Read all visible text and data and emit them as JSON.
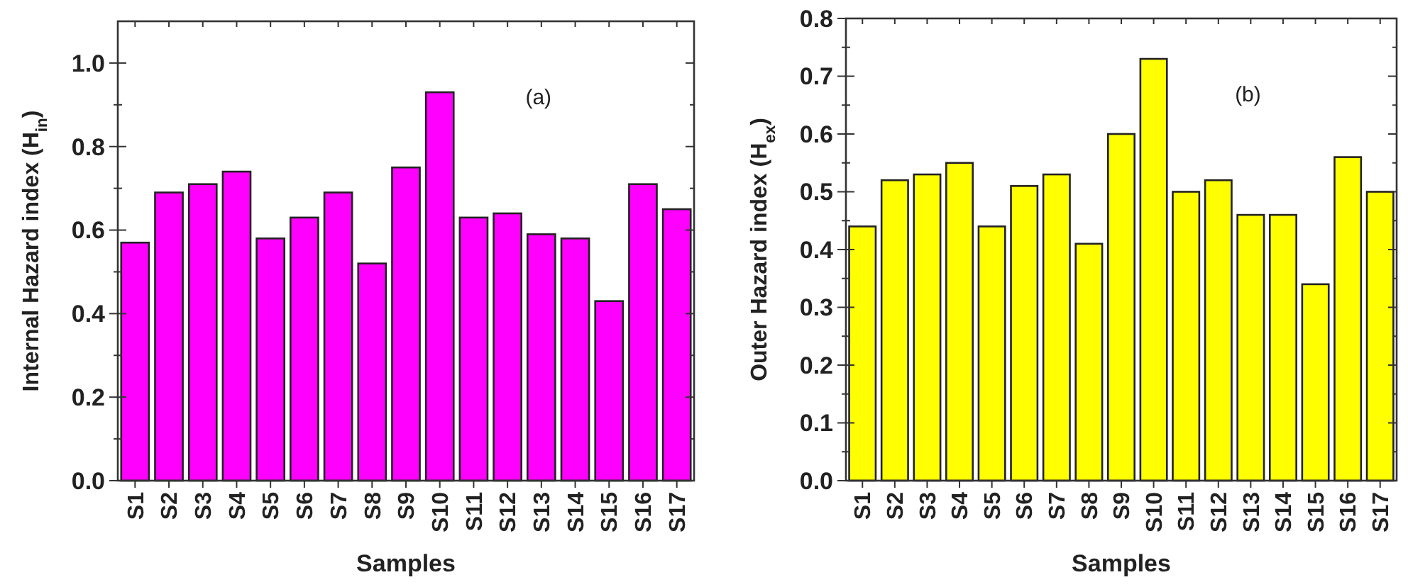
{
  "chart_data": [
    {
      "type": "bar",
      "ylabel": "Internal Hazard index  (H$_{in}$)",
      "xlabel": "Samples",
      "annotations": [
        "(a)"
      ],
      "categories": [
        "S1",
        "S2",
        "S3",
        "S4",
        "S5",
        "S6",
        "S7",
        "S8",
        "S9",
        "S10",
        "S11",
        "S12",
        "S13",
        "S14",
        "S15",
        "S16",
        "S17"
      ],
      "values": [
        0.57,
        0.69,
        0.71,
        0.74,
        0.58,
        0.63,
        0.69,
        0.52,
        0.75,
        0.93,
        0.63,
        0.64,
        0.59,
        0.58,
        0.43,
        0.71,
        0.65
      ],
      "color": "#ff00ff",
      "ylim": [
        0,
        1.1
      ],
      "yticks": [
        {
          "value": 0,
          "label": "0.0"
        },
        {
          "value": 0.1,
          "label": null
        },
        {
          "value": 0.2,
          "label": "0.2"
        },
        {
          "value": 0.3,
          "label": null
        },
        {
          "value": 0.4,
          "label": "0.4"
        },
        {
          "value": 0.5,
          "label": null
        },
        {
          "value": 0.6,
          "label": "0.6"
        },
        {
          "value": 0.7,
          "label": null
        },
        {
          "value": 0.8,
          "label": "0.8"
        },
        {
          "value": 0.9,
          "label": null
        },
        {
          "value": 1,
          "label": "1.0"
        }
      ],
      "grid": false
    },
    {
      "type": "bar",
      "ylabel": "Outer Hazard index   (H$_{ex}$)",
      "xlabel": "Samples",
      "annotations": [
        "(b)"
      ],
      "categories": [
        "S1",
        "S2",
        "S3",
        "S4",
        "S5",
        "S6",
        "S7",
        "S8",
        "S9",
        "S10",
        "S11",
        "S12",
        "S13",
        "S14",
        "S15",
        "S16",
        "S17"
      ],
      "values": [
        0.44,
        0.52,
        0.53,
        0.55,
        0.44,
        0.51,
        0.53,
        0.41,
        0.6,
        0.73,
        0.5,
        0.52,
        0.46,
        0.46,
        0.34,
        0.56,
        0.5
      ],
      "color": "#ffff00",
      "ylim": [
        0,
        0.8
      ],
      "yticks": [
        {
          "value": 0,
          "label": "0.0"
        },
        {
          "value": 0.05,
          "label": null
        },
        {
          "value": 0.1,
          "label": "0.1"
        },
        {
          "value": 0.15,
          "label": null
        },
        {
          "value": 0.2,
          "label": "0.2"
        },
        {
          "value": 0.25,
          "label": null
        },
        {
          "value": 0.3,
          "label": "0.3"
        },
        {
          "value": 0.35,
          "label": null
        },
        {
          "value": 0.4,
          "label": "0.4"
        },
        {
          "value": 0.45,
          "label": null
        },
        {
          "value": 0.5,
          "label": "0.5"
        },
        {
          "value": 0.55,
          "label": null
        },
        {
          "value": 0.6,
          "label": "0.6"
        },
        {
          "value": 0.65,
          "label": null
        },
        {
          "value": 0.7,
          "label": "0.7"
        },
        {
          "value": 0.75,
          "label": null
        },
        {
          "value": 0.8,
          "label": "0.8"
        }
      ],
      "grid": false
    }
  ]
}
